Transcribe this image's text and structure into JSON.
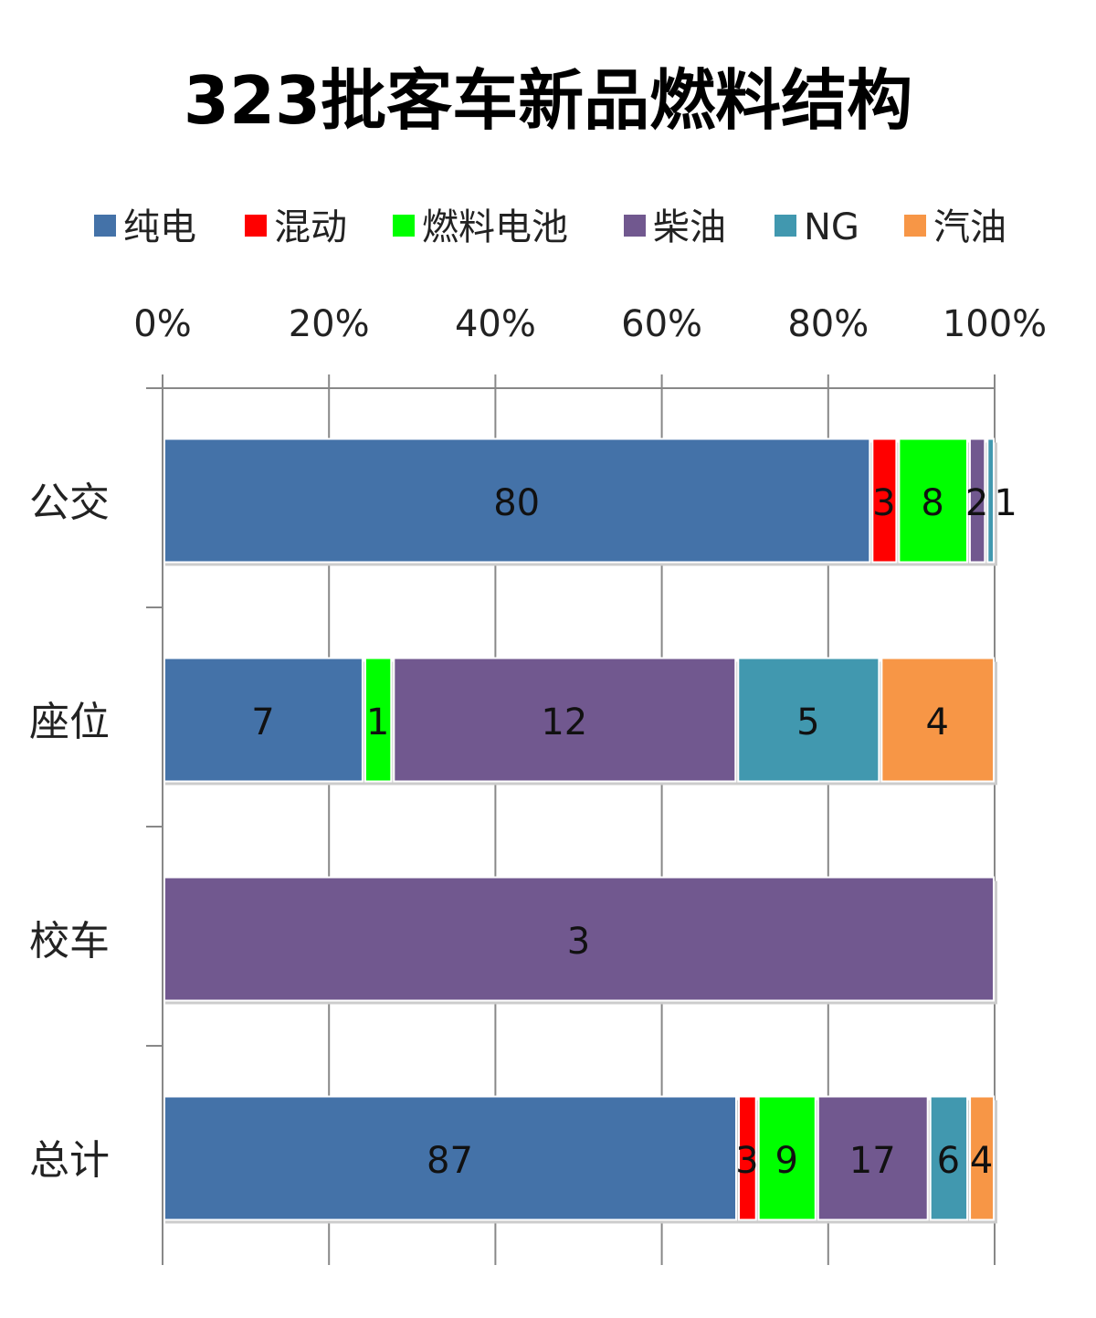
{
  "chart_data": {
    "type": "bar",
    "orientation": "horizontal",
    "stacked": "percent",
    "title": "323批客车新品燃料结构",
    "xlabel": "",
    "ylabel": "",
    "xlim": [
      0,
      100
    ],
    "x_tick_labels": [
      "0%",
      "20%",
      "40%",
      "60%",
      "80%",
      "100%"
    ],
    "x_ticks": [
      0,
      20,
      40,
      60,
      80,
      100
    ],
    "grid": true,
    "legend": "top",
    "categories": [
      "公交",
      "座位",
      "校车",
      "总计"
    ],
    "series": [
      {
        "name": "纯电",
        "color": "#4472a8",
        "values": [
          80,
          7,
          0,
          87
        ]
      },
      {
        "name": "混动",
        "color": "#ff0000",
        "values": [
          3,
          0,
          0,
          3
        ]
      },
      {
        "name": "燃料电池",
        "color": "#00ff00",
        "values": [
          8,
          1,
          0,
          9
        ]
      },
      {
        "name": "柴油",
        "color": "#71588f",
        "values": [
          2,
          12,
          3,
          17
        ]
      },
      {
        "name": "NG",
        "color": "#4198af",
        "values": [
          1,
          5,
          0,
          6
        ]
      },
      {
        "name": "汽油",
        "color": "#f79646",
        "values": [
          0,
          4,
          0,
          4
        ]
      }
    ]
  }
}
